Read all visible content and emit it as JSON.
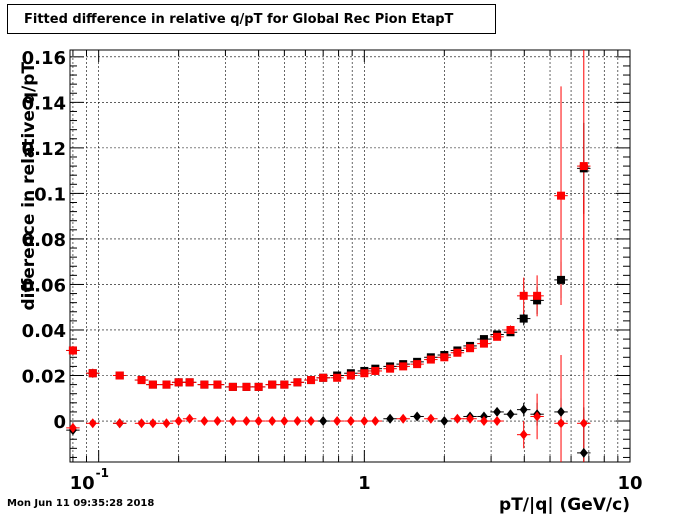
{
  "title": "Fitted difference in relative q/pT for Global Rec Pion EtapT",
  "timestamp": "Mon Jun 11 09:35:28 2018",
  "chart_data": {
    "type": "scatter",
    "title": "Fitted difference in relative q/pT for Global Rec Pion EtapT",
    "xlabel": "pT/|q| (GeV/c)",
    "ylabel": "difference in relative q/pT",
    "xscale": "log",
    "xlim": [
      0.078,
      10
    ],
    "ylim": [
      -0.018,
      0.163
    ],
    "grid": true,
    "xticks": [
      {
        "value": 0.1,
        "label": "10^-1"
      },
      {
        "value": 1,
        "label": "1"
      },
      {
        "value": 10,
        "label": "10"
      }
    ],
    "yticks": [
      {
        "value": 0,
        "label": "0"
      },
      {
        "value": 0.02,
        "label": "0.02"
      },
      {
        "value": 0.04,
        "label": "0.04"
      },
      {
        "value": 0.06,
        "label": "0.06"
      },
      {
        "value": 0.08,
        "label": "0.08"
      },
      {
        "value": 0.1,
        "label": "0.1"
      },
      {
        "value": 0.12,
        "label": "0.12"
      },
      {
        "value": 0.14,
        "label": "0.14"
      },
      {
        "value": 0.16,
        "label": "0.16"
      }
    ],
    "series": [
      {
        "marker": "square",
        "color": "#000000",
        "points": [
          [
            0.08,
            0.031,
            0
          ],
          [
            0.095,
            0.021,
            0
          ],
          [
            0.12,
            0.02,
            0
          ],
          [
            0.145,
            0.018,
            0
          ],
          [
            0.16,
            0.016,
            0
          ],
          [
            0.18,
            0.016,
            0
          ],
          [
            0.2,
            0.017,
            0
          ],
          [
            0.22,
            0.017,
            0
          ],
          [
            0.25,
            0.016,
            0
          ],
          [
            0.28,
            0.016,
            0
          ],
          [
            0.32,
            0.015,
            0
          ],
          [
            0.36,
            0.015,
            0
          ],
          [
            0.4,
            0.015,
            0
          ],
          [
            0.45,
            0.016,
            0
          ],
          [
            0.5,
            0.016,
            0
          ],
          [
            0.56,
            0.017,
            0
          ],
          [
            0.63,
            0.018,
            0
          ],
          [
            0.7,
            0.019,
            0
          ],
          [
            0.79,
            0.02,
            0
          ],
          [
            0.89,
            0.021,
            0
          ],
          [
            1.0,
            0.022,
            0
          ],
          [
            1.1,
            0.023,
            0
          ],
          [
            1.25,
            0.024,
            0
          ],
          [
            1.4,
            0.025,
            0
          ],
          [
            1.58,
            0.026,
            0
          ],
          [
            1.78,
            0.028,
            0
          ],
          [
            2.0,
            0.029,
            0
          ],
          [
            2.24,
            0.031,
            0
          ],
          [
            2.5,
            0.033,
            0
          ],
          [
            2.82,
            0.036,
            0
          ],
          [
            3.16,
            0.038,
            0
          ],
          [
            3.55,
            0.039,
            0
          ],
          [
            3.98,
            0.045,
            0.003
          ],
          [
            4.47,
            0.053,
            0.006
          ],
          [
            5.5,
            0.062,
            0.008
          ],
          [
            6.7,
            0.111,
            0.02
          ]
        ]
      },
      {
        "marker": "square",
        "color": "#ff0000",
        "points": [
          [
            0.08,
            0.031,
            0.002
          ],
          [
            0.095,
            0.021,
            0.002
          ],
          [
            0.12,
            0.02,
            0
          ],
          [
            0.145,
            0.018,
            0
          ],
          [
            0.16,
            0.016,
            0
          ],
          [
            0.18,
            0.016,
            0
          ],
          [
            0.2,
            0.017,
            0
          ],
          [
            0.22,
            0.017,
            0
          ],
          [
            0.25,
            0.016,
            0
          ],
          [
            0.28,
            0.016,
            0
          ],
          [
            0.32,
            0.015,
            0
          ],
          [
            0.36,
            0.015,
            0
          ],
          [
            0.4,
            0.015,
            0
          ],
          [
            0.45,
            0.016,
            0
          ],
          [
            0.5,
            0.016,
            0
          ],
          [
            0.56,
            0.017,
            0
          ],
          [
            0.63,
            0.018,
            0
          ],
          [
            0.7,
            0.019,
            0
          ],
          [
            0.79,
            0.019,
            0
          ],
          [
            0.89,
            0.02,
            0
          ],
          [
            1.0,
            0.021,
            0
          ],
          [
            1.1,
            0.022,
            0
          ],
          [
            1.25,
            0.023,
            0
          ],
          [
            1.4,
            0.024,
            0
          ],
          [
            1.58,
            0.025,
            0
          ],
          [
            1.78,
            0.027,
            0
          ],
          [
            2.0,
            0.028,
            0
          ],
          [
            2.24,
            0.03,
            0
          ],
          [
            2.5,
            0.032,
            0
          ],
          [
            2.82,
            0.034,
            0
          ],
          [
            3.16,
            0.037,
            0
          ],
          [
            3.55,
            0.04,
            0.002
          ],
          [
            3.98,
            0.055,
            0.008
          ],
          [
            4.47,
            0.055,
            0.009
          ],
          [
            5.5,
            0.099,
            0.048
          ],
          [
            6.7,
            0.112,
            0.09
          ]
        ]
      },
      {
        "marker": "diamond",
        "color": "#000000",
        "points": [
          [
            0.08,
            -0.004,
            0.001
          ],
          [
            0.12,
            -0.001,
            0
          ],
          [
            0.7,
            0.0,
            0
          ],
          [
            1.25,
            0.001,
            0
          ],
          [
            1.58,
            0.002,
            0
          ],
          [
            2.0,
            0.0,
            0
          ],
          [
            2.5,
            0.002,
            0
          ],
          [
            2.82,
            0.002,
            0
          ],
          [
            3.16,
            0.004,
            0
          ],
          [
            3.55,
            0.003,
            0
          ],
          [
            3.98,
            0.005,
            0.003
          ],
          [
            4.47,
            0.003,
            0.005
          ],
          [
            5.5,
            0.004,
            0.006
          ],
          [
            6.7,
            -0.014,
            0.02
          ]
        ]
      },
      {
        "marker": "diamond",
        "color": "#ff0000",
        "points": [
          [
            0.08,
            -0.003,
            0.002
          ],
          [
            0.095,
            -0.001,
            0
          ],
          [
            0.12,
            -0.001,
            0
          ],
          [
            0.145,
            -0.001,
            0
          ],
          [
            0.16,
            -0.001,
            0
          ],
          [
            0.18,
            -0.001,
            0
          ],
          [
            0.2,
            0.0,
            0
          ],
          [
            0.22,
            0.001,
            0
          ],
          [
            0.25,
            0.0,
            0
          ],
          [
            0.28,
            0.0,
            0
          ],
          [
            0.32,
            0.0,
            0
          ],
          [
            0.36,
            0.0,
            0
          ],
          [
            0.4,
            0.0,
            0
          ],
          [
            0.45,
            0.0,
            0
          ],
          [
            0.5,
            0.0,
            0
          ],
          [
            0.56,
            0.0,
            0
          ],
          [
            0.63,
            0.0,
            0
          ],
          [
            0.79,
            0.0,
            0
          ],
          [
            0.89,
            0.0,
            0
          ],
          [
            1.0,
            0.0,
            0
          ],
          [
            1.1,
            0.0,
            0
          ],
          [
            1.4,
            0.001,
            0
          ],
          [
            1.78,
            0.001,
            0
          ],
          [
            2.24,
            0.001,
            0
          ],
          [
            2.5,
            0.001,
            0
          ],
          [
            2.82,
            0.0,
            0
          ],
          [
            3.16,
            0.0,
            0
          ],
          [
            3.98,
            -0.006,
            0.006
          ],
          [
            4.47,
            0.002,
            0.01
          ],
          [
            5.5,
            -0.001,
            0.03
          ],
          [
            6.7,
            -0.001,
            0.1
          ]
        ]
      }
    ]
  }
}
